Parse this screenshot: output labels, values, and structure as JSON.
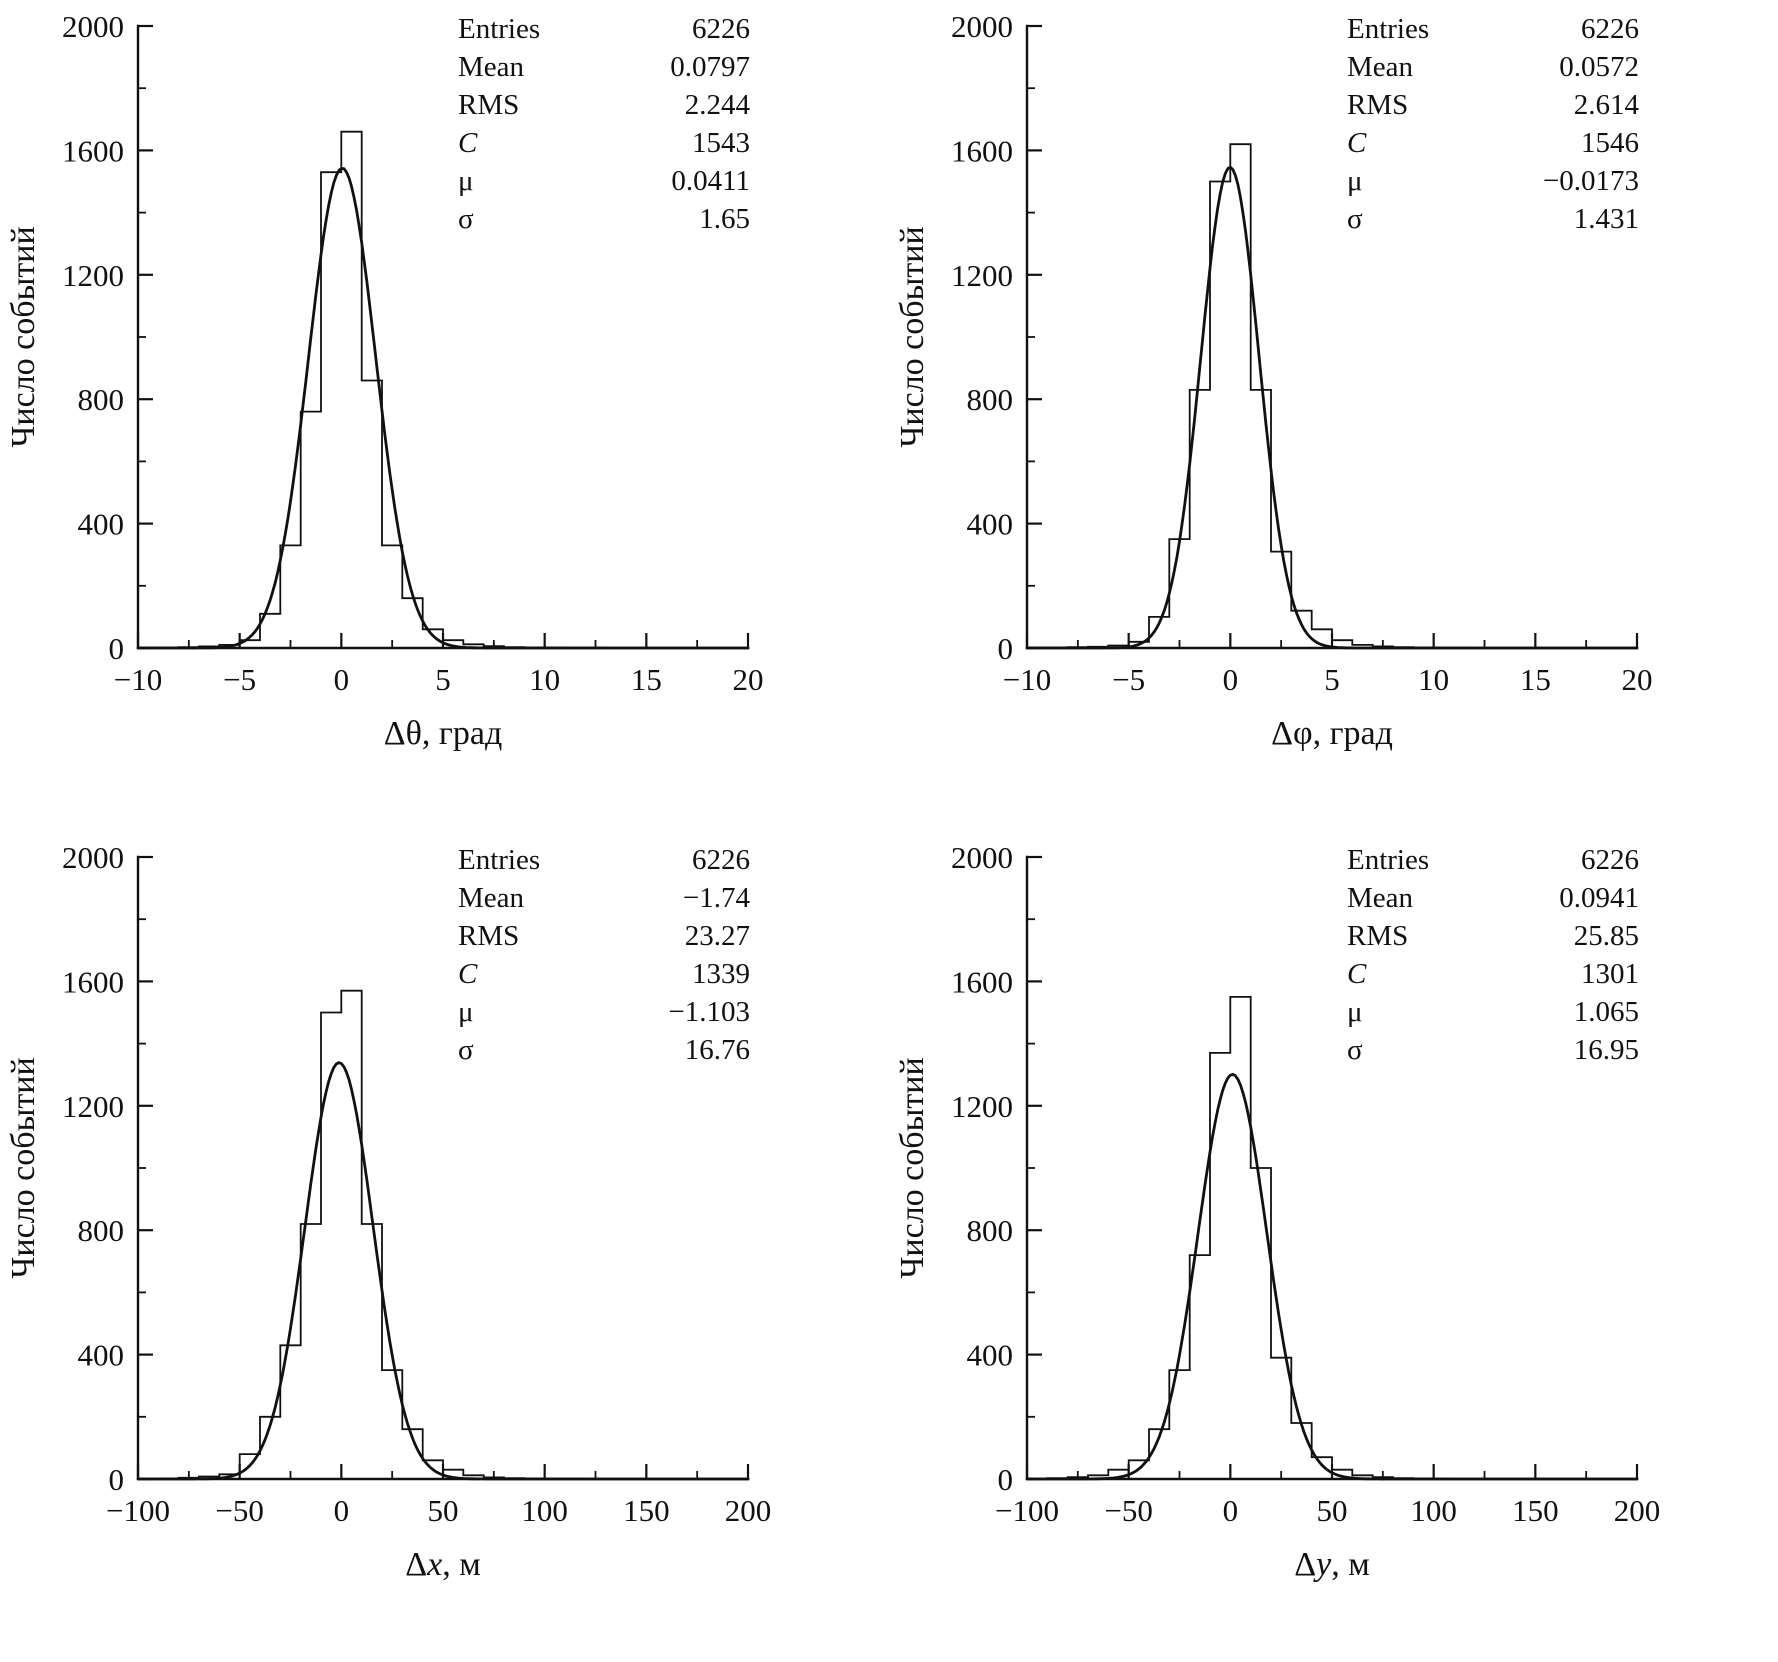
{
  "figure": {
    "background": "#ffffff",
    "line_color": "#111111"
  },
  "chart_data": [
    {
      "type": "histogram",
      "panel": "top-left",
      "ylabel": "Число событий",
      "xlabel": {
        "prefix": "Δ",
        "variable": "θ",
        "variable_italic": false,
        "suffix": ", град"
      },
      "xlim": [
        -10,
        20
      ],
      "ylim": [
        0,
        2000
      ],
      "xticks": [
        -10,
        -5,
        0,
        5,
        10,
        15,
        20
      ],
      "yticks": [
        0,
        400,
        800,
        1200,
        1600,
        2000
      ],
      "bins": {
        "start": -10,
        "width": 1,
        "counts": [
          2,
          2,
          3,
          5,
          10,
          25,
          110,
          330,
          760,
          1530,
          1660,
          860,
          330,
          160,
          60,
          25,
          12,
          6,
          3,
          2,
          2,
          1,
          1,
          0,
          0,
          0,
          0,
          0,
          0,
          0
        ]
      },
      "fit": {
        "type": "gaussian",
        "C": 1543,
        "mu": 0.0411,
        "sigma": 1.65
      },
      "stats": {
        "rows": [
          {
            "label": "Entries",
            "value": "6226"
          },
          {
            "label": "Mean",
            "value": "0.0797"
          },
          {
            "label": "RMS",
            "value": "2.244"
          },
          {
            "label": "C",
            "value": "1543"
          },
          {
            "label": "μ",
            "value": "0.0411"
          },
          {
            "label": "σ",
            "value": "1.65"
          }
        ]
      }
    },
    {
      "type": "histogram",
      "panel": "top-right",
      "ylabel": "Число событий",
      "xlabel": {
        "prefix": "Δ",
        "variable": "φ",
        "variable_italic": false,
        "suffix": ", град"
      },
      "xlim": [
        -10,
        20
      ],
      "ylim": [
        0,
        2000
      ],
      "xticks": [
        -10,
        -5,
        0,
        5,
        10,
        15,
        20
      ],
      "yticks": [
        0,
        400,
        800,
        1200,
        1600,
        2000
      ],
      "bins": {
        "start": -10,
        "width": 1,
        "counts": [
          2,
          2,
          3,
          4,
          8,
          20,
          100,
          350,
          830,
          1500,
          1620,
          830,
          310,
          120,
          60,
          25,
          10,
          5,
          3,
          2,
          1,
          1,
          0,
          0,
          0,
          0,
          0,
          0,
          0,
          0
        ]
      },
      "fit": {
        "type": "gaussian",
        "C": 1546,
        "mu": -0.0173,
        "sigma": 1.431
      },
      "stats": {
        "rows": [
          {
            "label": "Entries",
            "value": "6226"
          },
          {
            "label": "Mean",
            "value": "0.0572"
          },
          {
            "label": "RMS",
            "value": "2.614"
          },
          {
            "label": "C",
            "value": "1546"
          },
          {
            "label": "μ",
            "value": "−0.0173"
          },
          {
            "label": "σ",
            "value": "1.431"
          }
        ]
      }
    },
    {
      "type": "histogram",
      "panel": "bottom-left",
      "ylabel": "Число событий",
      "xlabel": {
        "prefix": "Δ",
        "variable": "x",
        "variable_italic": true,
        "suffix": ", м"
      },
      "xlim": [
        -100,
        200
      ],
      "ylim": [
        0,
        2000
      ],
      "xticks": [
        -100,
        -50,
        0,
        50,
        100,
        150,
        200
      ],
      "yticks": [
        0,
        400,
        800,
        1200,
        1600,
        2000
      ],
      "bins": {
        "start": -100,
        "width": 10,
        "counts": [
          1,
          2,
          4,
          8,
          15,
          80,
          200,
          430,
          820,
          1500,
          1570,
          820,
          350,
          160,
          60,
          30,
          12,
          5,
          3,
          2,
          1,
          1,
          0,
          0,
          0,
          0,
          0,
          0,
          0,
          0
        ]
      },
      "fit": {
        "type": "gaussian",
        "C": 1339,
        "mu": -1.103,
        "sigma": 16.76
      },
      "stats": {
        "rows": [
          {
            "label": "Entries",
            "value": "6226"
          },
          {
            "label": "Mean",
            "value": "−1.74"
          },
          {
            "label": "RMS",
            "value": "23.27"
          },
          {
            "label": "C",
            "value": "1339"
          },
          {
            "label": "μ",
            "value": "−1.103"
          },
          {
            "label": "σ",
            "value": "16.76"
          }
        ]
      }
    },
    {
      "type": "histogram",
      "panel": "bottom-right",
      "ylabel": "Число событий",
      "xlabel": {
        "prefix": "Δ",
        "variable": "y",
        "variable_italic": true,
        "suffix": ", м"
      },
      "xlim": [
        -100,
        200
      ],
      "ylim": [
        0,
        2000
      ],
      "xticks": [
        -100,
        -50,
        0,
        50,
        100,
        150,
        200
      ],
      "yticks": [
        0,
        400,
        800,
        1200,
        1600,
        2000
      ],
      "bins": {
        "start": -100,
        "width": 10,
        "counts": [
          1,
          3,
          6,
          12,
          30,
          60,
          160,
          350,
          720,
          1370,
          1550,
          1000,
          390,
          180,
          70,
          30,
          12,
          6,
          3,
          2,
          1,
          0,
          0,
          0,
          0,
          0,
          0,
          0,
          0,
          0
        ]
      },
      "fit": {
        "type": "gaussian",
        "C": 1301,
        "mu": 1.065,
        "sigma": 16.95
      },
      "stats": {
        "rows": [
          {
            "label": "Entries",
            "value": "6226"
          },
          {
            "label": "Mean",
            "value": "0.0941"
          },
          {
            "label": "RMS",
            "value": "25.85"
          },
          {
            "label": "C",
            "value": "1301"
          },
          {
            "label": "μ",
            "value": "1.065"
          },
          {
            "label": "σ",
            "value": "16.95"
          }
        ]
      }
    }
  ]
}
